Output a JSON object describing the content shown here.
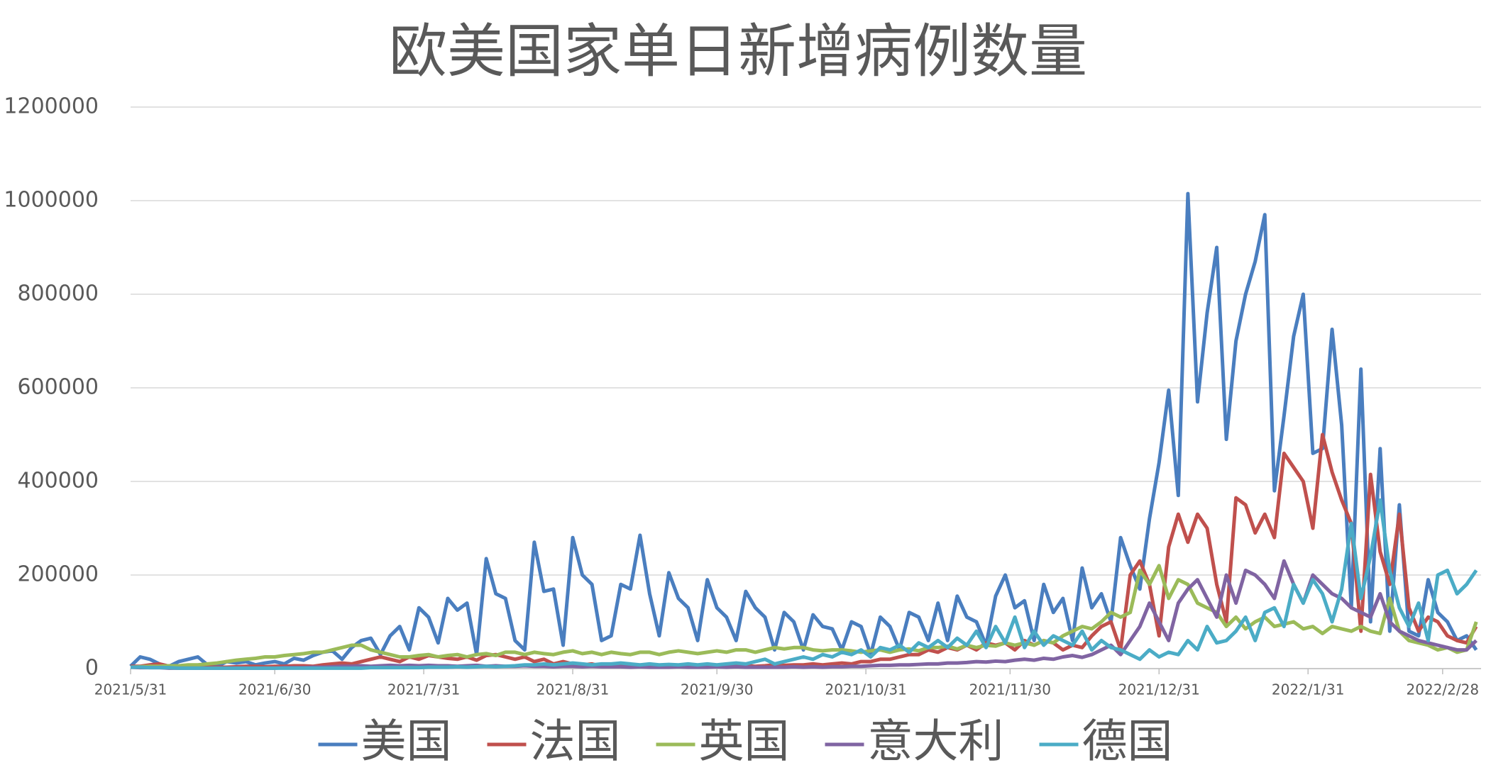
{
  "chart_data": {
    "type": "line",
    "title": "欧美国家单日新增病例数量",
    "x": [
      0,
      2,
      4,
      6,
      8,
      10,
      12,
      14,
      16,
      18,
      20,
      22,
      24,
      26,
      28,
      30,
      32,
      34,
      36,
      38,
      40,
      42,
      44,
      46,
      48,
      50,
      52,
      54,
      56,
      58,
      60,
      62,
      64,
      66,
      68,
      70,
      72,
      74,
      76,
      78,
      80,
      82,
      84,
      86,
      88,
      90,
      92,
      94,
      96,
      98,
      100,
      102,
      104,
      106,
      108,
      110,
      112,
      114,
      116,
      118,
      120,
      122,
      124,
      126,
      128,
      130,
      132,
      134,
      136,
      138,
      140,
      142,
      144,
      146,
      148,
      150,
      152,
      154,
      156,
      158,
      160,
      162,
      164,
      166,
      168,
      170,
      172,
      174,
      176,
      178,
      180,
      182,
      184,
      186,
      188,
      190,
      192,
      194,
      196,
      198,
      200,
      202,
      204,
      206,
      208,
      210,
      212,
      214,
      216,
      218,
      220,
      222,
      224,
      226,
      228,
      230,
      232,
      234,
      236,
      238,
      240,
      242,
      244,
      246,
      248,
      250,
      252,
      254,
      256,
      258,
      260,
      262,
      264,
      266,
      268,
      270,
      272,
      274,
      276,
      278,
      280
    ],
    "xlim": [
      0,
      281
    ],
    "xticks": [
      {
        "value": 0,
        "label": "2021/5/31"
      },
      {
        "value": 30,
        "label": "2021/6/30"
      },
      {
        "value": 61,
        "label": "2021/7/31"
      },
      {
        "value": 92,
        "label": "2021/8/31"
      },
      {
        "value": 122,
        "label": "2021/9/30"
      },
      {
        "value": 153,
        "label": "2021/10/31"
      },
      {
        "value": 183,
        "label": "2021/11/30"
      },
      {
        "value": 214,
        "label": "2021/12/31"
      },
      {
        "value": 245,
        "label": "2022/1/31"
      },
      {
        "value": 273,
        "label": "2022/2/28"
      }
    ],
    "ylim": [
      0,
      1200000
    ],
    "yticks": [
      0,
      200000,
      400000,
      600000,
      800000,
      1000000,
      1200000
    ],
    "grid": true,
    "legend": "bottom",
    "series": [
      {
        "name": "美国",
        "color": "#4a7ebf",
        "values": [
          5000,
          25000,
          20000,
          10000,
          5000,
          15000,
          20000,
          25000,
          8000,
          5000,
          15000,
          12000,
          15000,
          8000,
          12000,
          15000,
          10000,
          22000,
          18000,
          28000,
          35000,
          38000,
          20000,
          45000,
          60000,
          65000,
          30000,
          70000,
          90000,
          40000,
          130000,
          110000,
          55000,
          150000,
          125000,
          140000,
          30000,
          235000,
          160000,
          150000,
          60000,
          40000,
          270000,
          165000,
          170000,
          50000,
          280000,
          200000,
          180000,
          60000,
          70000,
          180000,
          170000,
          285000,
          160000,
          70000,
          205000,
          150000,
          130000,
          60000,
          190000,
          130000,
          110000,
          60000,
          165000,
          130000,
          110000,
          40000,
          120000,
          100000,
          40000,
          115000,
          90000,
          85000,
          40000,
          100000,
          90000,
          30000,
          110000,
          90000,
          40000,
          120000,
          110000,
          60000,
          140000,
          60000,
          155000,
          110000,
          100000,
          50000,
          155000,
          200000,
          130000,
          145000,
          60000,
          180000,
          120000,
          150000,
          60000,
          215000,
          130000,
          160000,
          100000,
          280000,
          220000,
          170000,
          320000,
          440000,
          595000,
          370000,
          1015000,
          570000,
          760000,
          900000,
          490000,
          700000,
          800000,
          870000,
          970000,
          380000,
          540000,
          710000,
          800000,
          460000,
          470000,
          725000,
          520000,
          130000,
          640000,
          100000,
          470000,
          80000,
          350000,
          80000,
          70000,
          190000,
          120000,
          100000,
          60000,
          70000,
          40000
        ]
      },
      {
        "name": "法国",
        "color": "#c0504d",
        "values": [
          5000,
          5000,
          8000,
          10000,
          5000,
          3000,
          5000,
          5000,
          3000,
          3000,
          3000,
          4000,
          5000,
          5000,
          4000,
          5000,
          5000,
          6000,
          6000,
          5000,
          8000,
          10000,
          12000,
          10000,
          15000,
          20000,
          25000,
          20000,
          15000,
          25000,
          20000,
          28000,
          25000,
          22000,
          20000,
          25000,
          18000,
          28000,
          30000,
          25000,
          20000,
          25000,
          15000,
          20000,
          10000,
          15000,
          10000,
          8000,
          10000,
          5000,
          8000,
          5000,
          8000,
          5000,
          6000,
          5000,
          5000,
          6000,
          5000,
          5000,
          6000,
          5000,
          5000,
          5000,
          6000,
          5000,
          6000,
          8000,
          7000,
          8000,
          8000,
          10000,
          8000,
          10000,
          12000,
          10000,
          15000,
          15000,
          20000,
          20000,
          25000,
          30000,
          30000,
          40000,
          35000,
          45000,
          40000,
          50000,
          40000,
          55000,
          50000,
          55000,
          40000,
          60000,
          50000,
          60000,
          55000,
          40000,
          50000,
          45000,
          70000,
          90000,
          100000,
          40000,
          200000,
          230000,
          180000,
          70000,
          260000,
          330000,
          270000,
          330000,
          300000,
          180000,
          100000,
          365000,
          350000,
          290000,
          330000,
          280000,
          460000,
          430000,
          400000,
          300000,
          500000,
          420000,
          360000,
          310000,
          80000,
          415000,
          250000,
          180000,
          330000,
          130000,
          80000,
          110000,
          100000,
          70000,
          60000,
          55000,
          90000
        ]
      },
      {
        "name": "英国",
        "color": "#9bbb59",
        "values": [
          3000,
          4000,
          5000,
          5000,
          6000,
          6000,
          8000,
          8000,
          10000,
          12000,
          15000,
          18000,
          20000,
          22000,
          25000,
          25000,
          28000,
          30000,
          32000,
          35000,
          35000,
          40000,
          45000,
          50000,
          50000,
          40000,
          35000,
          30000,
          25000,
          25000,
          28000,
          30000,
          25000,
          28000,
          30000,
          25000,
          30000,
          32000,
          28000,
          35000,
          35000,
          30000,
          35000,
          32000,
          30000,
          35000,
          38000,
          32000,
          35000,
          30000,
          35000,
          32000,
          30000,
          35000,
          35000,
          30000,
          35000,
          38000,
          35000,
          32000,
          35000,
          38000,
          35000,
          40000,
          40000,
          35000,
          40000,
          45000,
          42000,
          45000,
          45000,
          40000,
          38000,
          40000,
          40000,
          38000,
          35000,
          38000,
          40000,
          35000,
          40000,
          42000,
          38000,
          45000,
          45000,
          48000,
          42000,
          50000,
          45000,
          50000,
          48000,
          55000,
          50000,
          55000,
          50000,
          60000,
          55000,
          70000,
          80000,
          90000,
          85000,
          100000,
          120000,
          110000,
          120000,
          210000,
          180000,
          220000,
          150000,
          190000,
          180000,
          140000,
          130000,
          120000,
          90000,
          110000,
          85000,
          100000,
          110000,
          90000,
          95000,
          100000,
          85000,
          90000,
          75000,
          90000,
          85000,
          80000,
          90000,
          80000,
          75000,
          150000,
          80000,
          60000,
          55000,
          50000,
          40000,
          45000,
          35000,
          40000,
          100000
        ]
      },
      {
        "name": "意大利",
        "color": "#8064a2",
        "values": [
          3000,
          2000,
          2000,
          2000,
          1000,
          1000,
          1000,
          1000,
          1000,
          1000,
          1000,
          1000,
          1000,
          1000,
          1000,
          1000,
          2000,
          2000,
          2000,
          3000,
          3000,
          4000,
          5000,
          5000,
          6000,
          5000,
          6000,
          7000,
          6000,
          7000,
          6000,
          7000,
          6000,
          6000,
          5000,
          6000,
          7000,
          5000,
          6000,
          5000,
          5000,
          6000,
          5000,
          5000,
          4000,
          5000,
          5000,
          4000,
          5000,
          4000,
          4000,
          4000,
          3000,
          4000,
          3000,
          3000,
          3000,
          4000,
          3000,
          3000,
          3000,
          4000,
          3000,
          4000,
          3000,
          3000,
          3000,
          3000,
          3000,
          4000,
          3000,
          4000,
          3000,
          4000,
          4000,
          5000,
          5000,
          6000,
          7000,
          7000,
          8000,
          8000,
          9000,
          10000,
          10000,
          12000,
          12000,
          13000,
          15000,
          14000,
          16000,
          15000,
          18000,
          20000,
          18000,
          22000,
          20000,
          25000,
          28000,
          24000,
          30000,
          40000,
          50000,
          30000,
          60000,
          90000,
          140000,
          100000,
          60000,
          140000,
          170000,
          190000,
          150000,
          110000,
          200000,
          140000,
          210000,
          200000,
          180000,
          150000,
          230000,
          180000,
          140000,
          200000,
          180000,
          160000,
          150000,
          130000,
          120000,
          110000,
          160000,
          100000,
          80000,
          70000,
          60000,
          55000,
          50000,
          45000,
          40000,
          40000,
          60000
        ]
      },
      {
        "name": "德国",
        "color": "#4bacc6",
        "values": [
          3000,
          3000,
          2000,
          2000,
          2000,
          1000,
          1000,
          1000,
          1000,
          1000,
          1000,
          1000,
          1000,
          1000,
          1000,
          1000,
          1000,
          1000,
          1000,
          1000,
          1000,
          1000,
          1000,
          1000,
          1000,
          2000,
          2000,
          2000,
          2000,
          2000,
          2000,
          3000,
          3000,
          3000,
          4000,
          3000,
          4000,
          5000,
          4000,
          5000,
          6000,
          8000,
          8000,
          10000,
          8000,
          10000,
          12000,
          10000,
          8000,
          10000,
          10000,
          12000,
          10000,
          8000,
          10000,
          8000,
          9000,
          8000,
          10000,
          8000,
          10000,
          8000,
          10000,
          12000,
          10000,
          15000,
          20000,
          10000,
          15000,
          20000,
          25000,
          20000,
          30000,
          25000,
          35000,
          30000,
          40000,
          25000,
          45000,
          40000,
          50000,
          35000,
          55000,
          45000,
          60000,
          45000,
          65000,
          50000,
          80000,
          45000,
          90000,
          55000,
          110000,
          45000,
          80000,
          50000,
          70000,
          60000,
          50000,
          80000,
          40000,
          60000,
          45000,
          40000,
          30000,
          20000,
          40000,
          25000,
          35000,
          30000,
          60000,
          40000,
          90000,
          55000,
          60000,
          80000,
          110000,
          60000,
          120000,
          130000,
          90000,
          180000,
          140000,
          190000,
          160000,
          100000,
          170000,
          310000,
          150000,
          240000,
          360000,
          210000,
          130000,
          90000,
          140000,
          60000,
          200000,
          210000,
          160000,
          180000,
          210000
        ]
      }
    ]
  }
}
